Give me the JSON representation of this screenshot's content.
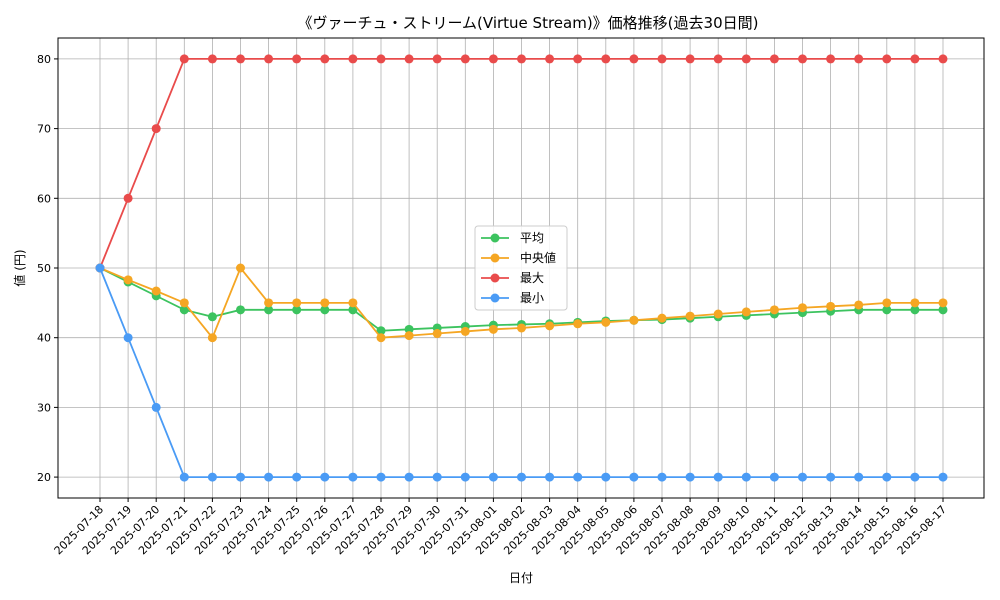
{
  "chart_data": {
    "type": "line",
    "title": "《ヴァーチュ・ストリーム(Virtue Stream)》価格推移(過去30日間)",
    "xlabel": "日付",
    "ylabel": "値 (円)",
    "ylim": [
      17,
      83
    ],
    "yticks": [
      20,
      30,
      40,
      50,
      60,
      70,
      80
    ],
    "grid": true,
    "legend_position": "center",
    "x": [
      "2025-07-18",
      "2025-07-19",
      "2025-07-20",
      "2025-07-21",
      "2025-07-22",
      "2025-07-23",
      "2025-07-24",
      "2025-07-25",
      "2025-07-26",
      "2025-07-27",
      "2025-07-28",
      "2025-07-29",
      "2025-07-30",
      "2025-07-31",
      "2025-08-01",
      "2025-08-02",
      "2025-08-03",
      "2025-08-04",
      "2025-08-05",
      "2025-08-06",
      "2025-08-07",
      "2025-08-08",
      "2025-08-09",
      "2025-08-10",
      "2025-08-11",
      "2025-08-12",
      "2025-08-13",
      "2025-08-14",
      "2025-08-15",
      "2025-08-16",
      "2025-08-17"
    ],
    "series": [
      {
        "name": "平均",
        "color": "#3cc35f",
        "values": [
          50,
          48,
          46,
          44,
          43,
          44,
          44,
          44,
          44,
          44,
          41,
          41.2,
          41.4,
          41.6,
          41.8,
          41.9,
          42.0,
          42.2,
          42.4,
          42.5,
          42.6,
          42.8,
          43.0,
          43.2,
          43.4,
          43.6,
          43.8,
          44,
          44,
          44,
          44
        ]
      },
      {
        "name": "中央値",
        "color": "#f5a623",
        "values": [
          50,
          48.3,
          46.7,
          45,
          40,
          50,
          45,
          45,
          45,
          45,
          40,
          40.3,
          40.6,
          40.9,
          41.2,
          41.4,
          41.7,
          42,
          42.2,
          42.5,
          42.8,
          43.1,
          43.4,
          43.7,
          44,
          44.3,
          44.5,
          44.7,
          45,
          45,
          45
        ]
      },
      {
        "name": "最大",
        "color": "#e94b4b",
        "values": [
          50,
          60,
          70,
          80,
          80,
          80,
          80,
          80,
          80,
          80,
          80,
          80,
          80,
          80,
          80,
          80,
          80,
          80,
          80,
          80,
          80,
          80,
          80,
          80,
          80,
          80,
          80,
          80,
          80,
          80,
          80
        ]
      },
      {
        "name": "最小",
        "color": "#4a9bf5",
        "values": [
          50,
          40,
          30,
          20,
          20,
          20,
          20,
          20,
          20,
          20,
          20,
          20,
          20,
          20,
          20,
          20,
          20,
          20,
          20,
          20,
          20,
          20,
          20,
          20,
          20,
          20,
          20,
          20,
          20,
          20,
          20
        ]
      }
    ]
  }
}
